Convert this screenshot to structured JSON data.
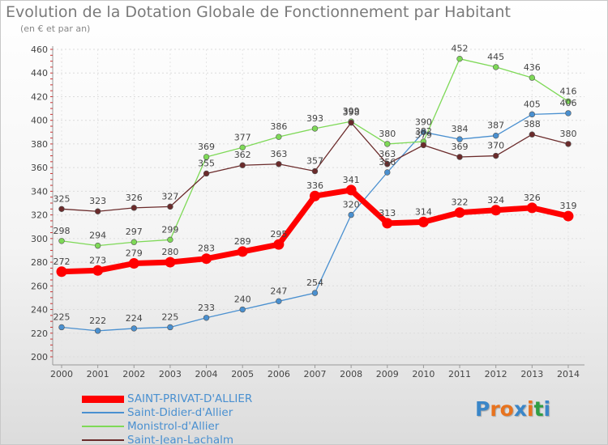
{
  "header": {
    "title": "Evolution de la Dotation Globale de Fonctionnement par Habitant",
    "subtitle": "(en € et par an)"
  },
  "logo": {
    "letters": [
      "P",
      "r",
      "o",
      "x",
      "i",
      "t",
      "i"
    ],
    "colors": [
      "#3a86c8",
      "#e8731e",
      "#e8731e",
      "#3a86c8",
      "#e8731e",
      "#2f9e44",
      "#3a86c8"
    ]
  },
  "chart_data": {
    "type": "line",
    "x": [
      "2000",
      "2001",
      "2002",
      "2003",
      "2004",
      "2005",
      "2006",
      "2007",
      "2008",
      "2009",
      "2010",
      "2011",
      "2012",
      "2013",
      "2014"
    ],
    "ylim": [
      200,
      460
    ],
    "yticks": [
      200,
      220,
      240,
      260,
      280,
      300,
      320,
      340,
      360,
      380,
      400,
      420,
      440,
      460
    ],
    "grid": true,
    "legend_position": "bottom-left",
    "series": [
      {
        "name": "SAINT-PRIVAT-D'ALLIER",
        "color": "#ff0000",
        "emphasis": true,
        "values": [
          272,
          273,
          279,
          280,
          283,
          289,
          295,
          336,
          341,
          313,
          314,
          322,
          324,
          326,
          319
        ]
      },
      {
        "name": "Saint-Didier-d'Allier",
        "color": "#4a90d0",
        "values": [
          225,
          222,
          224,
          225,
          233,
          240,
          247,
          254,
          320,
          356,
          390,
          384,
          387,
          405,
          406
        ]
      },
      {
        "name": "Monistrol-d'Allier",
        "color": "#7ed957",
        "values": [
          298,
          294,
          297,
          299,
          369,
          377,
          386,
          393,
          399,
          380,
          382,
          452,
          445,
          436,
          416
        ]
      },
      {
        "name": "Saint-Jean-Lachalm",
        "color": "#6b2b2b",
        "values": [
          325,
          323,
          326,
          327,
          355,
          362,
          363,
          357,
          398,
          363,
          379,
          369,
          370,
          388,
          380
        ]
      }
    ]
  }
}
